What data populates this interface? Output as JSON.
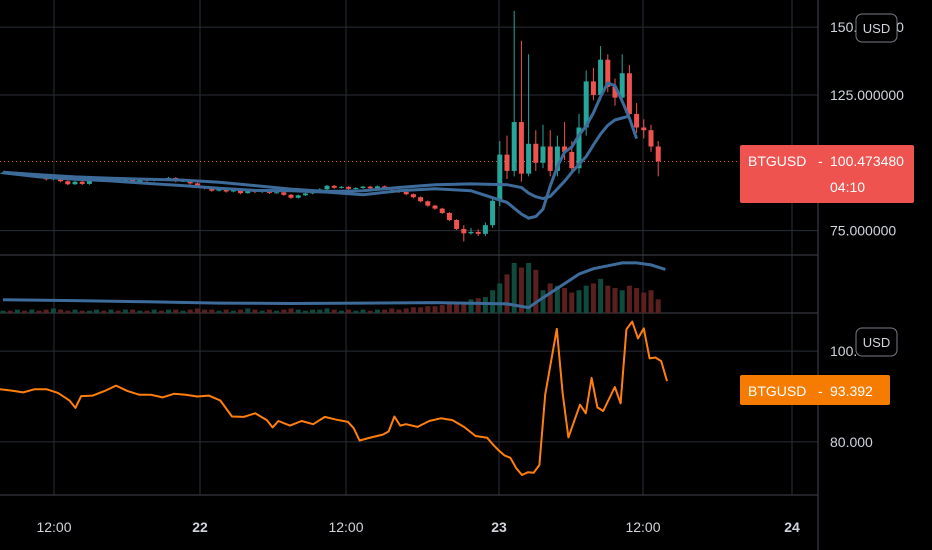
{
  "colors": {
    "background": "#000000",
    "grid": "#2a2e39",
    "up": "#26a69a",
    "down": "#ef5350",
    "ma": "#3d6b9a",
    "line": "#ff7f0e",
    "axis_text": "#d1d4dc",
    "badge_main": "#ef5350",
    "badge_lower": "#f57c00"
  },
  "top_panel": {
    "currency_button": "USD",
    "symbol_badge": {
      "symbol": "BTGUSD",
      "price": "100.473480",
      "countdown": "04:10"
    }
  },
  "bottom_panel": {
    "currency_button": "USD",
    "symbol_badge": {
      "symbol": "BTGUSD",
      "value": "93.392"
    }
  },
  "chart_data": [
    {
      "type": "candlestick",
      "y_ticks": [
        "150.000000",
        "125.000000",
        "75.000000"
      ],
      "y_tick_values": [
        150,
        125,
        75
      ],
      "ylim": [
        66,
        160
      ],
      "last_price": 100.47348,
      "x_ticks": [
        {
          "label": "12:00",
          "bold": false
        },
        {
          "label": "22",
          "bold": true
        },
        {
          "label": "12:00",
          "bold": false
        },
        {
          "label": "23",
          "bold": true
        },
        {
          "label": "12:00",
          "bold": false
        },
        {
          "label": "24",
          "bold": true
        }
      ],
      "ma_slow": [
        [
          0,
          96.5
        ],
        [
          5,
          95.6
        ],
        [
          10,
          94.8
        ],
        [
          15,
          94.3
        ],
        [
          20,
          93.9
        ],
        [
          25,
          93.6
        ],
        [
          30,
          92.8
        ],
        [
          35,
          91.6
        ],
        [
          40,
          90.3
        ],
        [
          45,
          89.4
        ],
        [
          50,
          89.7
        ],
        [
          55,
          90.9
        ],
        [
          60,
          91.9
        ],
        [
          65,
          92.2
        ],
        [
          70,
          91.9
        ],
        [
          72,
          90.9
        ],
        [
          73,
          88.8
        ],
        [
          74,
          87.5
        ],
        [
          75,
          86.8
        ],
        [
          76,
          87.6
        ],
        [
          77,
          90.4
        ],
        [
          78,
          93.2
        ],
        [
          79,
          96.5
        ],
        [
          80,
          99.4
        ],
        [
          81,
          102.3
        ],
        [
          82,
          106.6
        ],
        [
          83,
          110.6
        ],
        [
          84,
          113.8
        ],
        [
          85,
          115.8
        ],
        [
          86,
          116.5
        ],
        [
          87,
          117.2
        ]
      ],
      "ma_fast": [
        [
          0,
          96.3
        ],
        [
          5,
          94.8
        ],
        [
          10,
          93.9
        ],
        [
          15,
          93.3
        ],
        [
          20,
          92.4
        ],
        [
          25,
          91.6
        ],
        [
          30,
          90.6
        ],
        [
          35,
          89.8
        ],
        [
          40,
          89.7
        ],
        [
          45,
          89.2
        ],
        [
          50,
          88.2
        ],
        [
          55,
          89.7
        ],
        [
          60,
          90.4
        ],
        [
          65,
          89.7
        ],
        [
          70,
          85.4
        ],
        [
          72,
          81.1
        ],
        [
          73,
          79.6
        ],
        [
          74,
          80.2
        ],
        [
          75,
          82.9
        ],
        [
          76,
          91.4
        ],
        [
          77,
          98.6
        ],
        [
          78,
          103.9
        ],
        [
          79,
          105.8
        ],
        [
          80,
          110.2
        ],
        [
          81,
          113.6
        ],
        [
          82,
          118.4
        ],
        [
          83,
          124.4
        ],
        [
          84,
          129.4
        ],
        [
          85,
          128.4
        ],
        [
          86,
          122.7
        ],
        [
          87,
          116.5
        ],
        [
          88,
          108.9
        ]
      ],
      "candles": [
        [
          96.0,
          96.3,
          95.8,
          96.7
        ],
        [
          96.3,
          95.9,
          95.5,
          96.8
        ],
        [
          95.9,
          96.1,
          95.6,
          96.5
        ],
        [
          96.1,
          95.7,
          95.3,
          96.4
        ],
        [
          95.7,
          95.8,
          95.4,
          96.2
        ],
        [
          95.8,
          95.2,
          94.8,
          96.1
        ],
        [
          95.2,
          93.9,
          93.5,
          95.4
        ],
        [
          93.9,
          94.6,
          93.6,
          94.9
        ],
        [
          94.6,
          93.2,
          92.8,
          94.9
        ],
        [
          93.2,
          92.1,
          91.7,
          93.5
        ],
        [
          92.1,
          93.0,
          91.8,
          93.3
        ],
        [
          93.0,
          92.2,
          91.8,
          93.4
        ],
        [
          92.2,
          93.5,
          91.9,
          93.8
        ],
        [
          93.5,
          94.2,
          93.2,
          94.6
        ],
        [
          94.2,
          93.7,
          93.3,
          94.5
        ],
        [
          93.7,
          94.5,
          93.4,
          94.8
        ],
        [
          94.5,
          93.4,
          93.0,
          94.8
        ],
        [
          93.4,
          93.8,
          93.1,
          94.1
        ],
        [
          93.8,
          92.7,
          92.3,
          94.1
        ],
        [
          92.7,
          94.1,
          92.5,
          94.4
        ],
        [
          94.1,
          93.4,
          93.0,
          94.4
        ],
        [
          93.4,
          93.9,
          93.1,
          94.2
        ],
        [
          93.9,
          93.7,
          93.4,
          94.2
        ],
        [
          93.7,
          94.4,
          93.4,
          94.8
        ],
        [
          94.4,
          93.2,
          92.8,
          94.7
        ],
        [
          93.2,
          93.4,
          92.9,
          93.7
        ],
        [
          93.4,
          92.4,
          92.0,
          93.7
        ],
        [
          92.4,
          91.2,
          90.8,
          92.7
        ],
        [
          91.2,
          90.6,
          90.2,
          91.5
        ],
        [
          90.6,
          89.7,
          89.3,
          90.9
        ],
        [
          89.7,
          90.6,
          89.4,
          90.9
        ],
        [
          90.6,
          89.4,
          89.0,
          90.9
        ],
        [
          89.4,
          89.8,
          89.1,
          90.1
        ],
        [
          89.8,
          88.8,
          88.4,
          90.1
        ],
        [
          88.8,
          89.8,
          88.6,
          90.1
        ],
        [
          89.8,
          89.2,
          88.8,
          90.1
        ],
        [
          89.2,
          89.6,
          88.9,
          89.9
        ],
        [
          89.6,
          88.9,
          88.5,
          89.9
        ],
        [
          88.9,
          89.1,
          88.6,
          89.4
        ],
        [
          89.1,
          88.2,
          87.8,
          89.4
        ],
        [
          88.2,
          87.1,
          86.7,
          88.5
        ],
        [
          87.1,
          88.0,
          86.8,
          88.3
        ],
        [
          88.0,
          88.7,
          87.7,
          89.0
        ],
        [
          88.7,
          89.5,
          88.4,
          89.8
        ],
        [
          89.5,
          90.2,
          89.2,
          90.6
        ],
        [
          90.2,
          91.5,
          89.9,
          91.8
        ],
        [
          91.5,
          90.8,
          90.4,
          91.8
        ],
        [
          90.8,
          91.1,
          90.5,
          91.4
        ],
        [
          91.1,
          90.4,
          90.0,
          91.4
        ],
        [
          90.4,
          90.7,
          90.1,
          91.0
        ],
        [
          90.7,
          91.2,
          90.4,
          91.5
        ],
        [
          91.2,
          90.6,
          90.2,
          91.5
        ],
        [
          90.6,
          91.3,
          90.3,
          91.6
        ],
        [
          91.3,
          90.8,
          90.4,
          91.6
        ],
        [
          90.8,
          90.1,
          89.7,
          91.1
        ],
        [
          90.1,
          89.3,
          88.9,
          90.4
        ],
        [
          89.3,
          88.4,
          88.0,
          89.6
        ],
        [
          88.4,
          87.3,
          86.9,
          88.7
        ],
        [
          87.3,
          85.8,
          85.4,
          87.6
        ],
        [
          85.8,
          84.2,
          83.8,
          86.1
        ],
        [
          84.2,
          83.1,
          82.7,
          84.5
        ],
        [
          83.1,
          81.5,
          81.1,
          83.4
        ],
        [
          81.5,
          78.9,
          78.5,
          81.8
        ],
        [
          78.9,
          75.6,
          75.2,
          79.2
        ],
        [
          75.6,
          74.0,
          71.0,
          77.0
        ],
        [
          74.0,
          74.5,
          73.5,
          76.0
        ],
        [
          74.5,
          73.8,
          73.0,
          75.5
        ],
        [
          73.8,
          77.0,
          73.0,
          78.0
        ],
        [
          77.0,
          86.0,
          76.0,
          87.0
        ],
        [
          86.0,
          103.0,
          84.0,
          108.0
        ],
        [
          103.0,
          97.0,
          94.0,
          110.0
        ],
        [
          97.0,
          115.0,
          95.0,
          156.0
        ],
        [
          115.0,
          96.0,
          93.0,
          145.0
        ],
        [
          96.0,
          107.0,
          95.0,
          140.0
        ],
        [
          107.0,
          100.0,
          97.0,
          112.0
        ],
        [
          100.0,
          106.0,
          98.0,
          114.0
        ],
        [
          106.0,
          97.0,
          95.0,
          112.0
        ],
        [
          97.0,
          106.0,
          95.0,
          110.0
        ],
        [
          106.0,
          104.0,
          101.0,
          115.0
        ],
        [
          104.0,
          98.0,
          96.0,
          108.0
        ],
        [
          98.0,
          113.0,
          96.0,
          118.0
        ],
        [
          113.0,
          130.0,
          110.0,
          134.0
        ],
        [
          130.0,
          125.0,
          123.0,
          135.0
        ],
        [
          125.0,
          138.0,
          123.0,
          143.0
        ],
        [
          138.0,
          128.0,
          126.0,
          140.0
        ],
        [
          128.0,
          124.0,
          121.0,
          131.0
        ],
        [
          124.0,
          133.0,
          122.0,
          140.0
        ],
        [
          133.0,
          118.0,
          116.0,
          136.0
        ],
        [
          118.0,
          113.0,
          111.0,
          122.0
        ],
        [
          113.0,
          112.0,
          109.0,
          116.0
        ],
        [
          112.0,
          106.0,
          104.0,
          114.0
        ],
        [
          106.0,
          100.5,
          95.0,
          108.0
        ]
      ]
    },
    {
      "type": "bar",
      "volumes": [
        2,
        2,
        3,
        2,
        3,
        2,
        3,
        4,
        3,
        2,
        3,
        2,
        2,
        3,
        2,
        3,
        2,
        3,
        3,
        2,
        2,
        3,
        2,
        3,
        3,
        2,
        3,
        4,
        3,
        3,
        2,
        3,
        2,
        3,
        4,
        3,
        2,
        3,
        2,
        3,
        4,
        3,
        2,
        3,
        3,
        4,
        3,
        2,
        3,
        2,
        3,
        2,
        3,
        3,
        4,
        3,
        4,
        5,
        5,
        6,
        6,
        7,
        8,
        9,
        10,
        12,
        13,
        14,
        20,
        26,
        34,
        44,
        40,
        44,
        38,
        20,
        26,
        24,
        22,
        18,
        20,
        24,
        26,
        30,
        24,
        22,
        20,
        24,
        22,
        18,
        20,
        12
      ],
      "ma_line": [
        [
          0,
          1.2
        ],
        [
          10,
          1.0
        ],
        [
          20,
          0.7
        ],
        [
          30,
          0.4
        ],
        [
          40,
          0.3
        ],
        [
          50,
          0.4
        ],
        [
          60,
          0.5
        ],
        [
          70,
          0.2
        ],
        [
          72,
          -0.4
        ],
        [
          73,
          -0.7
        ],
        [
          75,
          1.7
        ],
        [
          78,
          5.1
        ],
        [
          80,
          7.4
        ],
        [
          82,
          8.7
        ],
        [
          84,
          9.4
        ],
        [
          86,
          10.1
        ],
        [
          88,
          10.1
        ],
        [
          90,
          9.6
        ],
        [
          92,
          8.5
        ]
      ],
      "ylim": [
        -2,
        12
      ]
    },
    {
      "type": "line",
      "y_ticks": [
        "100.000",
        "80.000"
      ],
      "y_tick_values": [
        100,
        80
      ],
      "ylim": [
        68.3,
        108.4
      ],
      "last_value": 93.392,
      "values": [
        [
          0,
          91.6
        ],
        [
          2,
          91.3
        ],
        [
          4,
          90.9
        ],
        [
          6,
          91.6
        ],
        [
          8,
          91.6
        ],
        [
          10,
          90.8
        ],
        [
          12,
          89.1
        ],
        [
          13,
          87.5
        ],
        [
          14,
          90.1
        ],
        [
          16,
          90.2
        ],
        [
          18,
          91.2
        ],
        [
          20,
          92.4
        ],
        [
          22,
          91.2
        ],
        [
          24,
          90.4
        ],
        [
          26,
          90.4
        ],
        [
          28,
          89.8
        ],
        [
          30,
          90.6
        ],
        [
          32,
          90.4
        ],
        [
          34,
          90.0
        ],
        [
          36,
          90.2
        ],
        [
          38,
          89.1
        ],
        [
          40,
          85.6
        ],
        [
          42,
          85.5
        ],
        [
          44,
          86.3
        ],
        [
          46,
          84.8
        ],
        [
          47,
          83.2
        ],
        [
          48,
          84.6
        ],
        [
          50,
          83.6
        ],
        [
          52,
          84.6
        ],
        [
          54,
          83.9
        ],
        [
          56,
          85.5
        ],
        [
          58,
          84.9
        ],
        [
          60,
          84.4
        ],
        [
          61,
          83.0
        ],
        [
          62,
          80.3
        ],
        [
          64,
          81.0
        ],
        [
          66,
          81.6
        ],
        [
          67,
          82.3
        ],
        [
          68,
          85.6
        ],
        [
          69,
          83.6
        ],
        [
          70,
          83.9
        ],
        [
          72,
          83.3
        ],
        [
          74,
          84.6
        ],
        [
          76,
          85.2
        ],
        [
          78,
          84.8
        ],
        [
          80,
          83.3
        ],
        [
          82,
          81.3
        ],
        [
          84,
          80.9
        ],
        [
          85,
          79.4
        ],
        [
          86,
          78.1
        ],
        [
          87,
          77.0
        ],
        [
          88,
          76.5
        ],
        [
          89,
          74.2
        ],
        [
          90,
          72.7
        ],
        [
          91,
          73.3
        ],
        [
          92,
          73.2
        ],
        [
          93,
          74.9
        ],
        [
          94,
          90.4
        ],
        [
          96,
          104.9
        ],
        [
          97,
          90.8
        ],
        [
          98,
          81.0
        ],
        [
          100,
          88.2
        ],
        [
          101,
          86.3
        ],
        [
          102,
          94.1
        ],
        [
          103,
          87.6
        ],
        [
          104,
          86.8
        ],
        [
          106,
          92.1
        ],
        [
          107,
          88.5
        ],
        [
          108,
          104.8
        ],
        [
          109,
          106.5
        ],
        [
          110,
          102.8
        ],
        [
          111,
          105.0
        ],
        [
          112,
          98.4
        ],
        [
          113,
          98.6
        ],
        [
          114,
          97.8
        ],
        [
          115,
          93.4
        ]
      ]
    }
  ]
}
